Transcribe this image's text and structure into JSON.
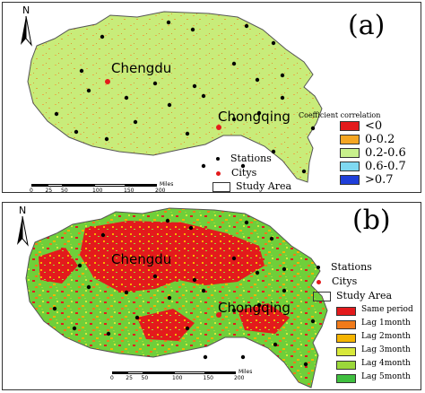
{
  "panel_a": {
    "label": "(a)",
    "north_label": "N",
    "cities": [
      {
        "name": "Chengdu"
      },
      {
        "name": "Chongqing"
      }
    ],
    "legend_title": "Coefficient correlation",
    "legend_entries": [
      {
        "label": "<0",
        "color": "#e31a1c"
      },
      {
        "label": "0-0.2",
        "color": "#f5a623"
      },
      {
        "label": "0.2-0.6",
        "color": "#c8f08c"
      },
      {
        "label": "0.6-0.7",
        "color": "#7fd9f2"
      },
      {
        "label": ">0.7",
        "color": "#1f3fd9"
      }
    ],
    "point_legend": [
      {
        "label": "Stations",
        "symbol": "black-dot"
      },
      {
        "label": "Citys",
        "symbol": "red-dot"
      },
      {
        "label": "Study Area",
        "symbol": "outline-box"
      }
    ],
    "scale": {
      "ticks": [
        "0",
        "25",
        "50",
        "100",
        "150",
        "200"
      ],
      "unit": "Miles"
    }
  },
  "panel_b": {
    "label": "(b)",
    "north_label": "N",
    "cities": [
      {
        "name": "Chengdu"
      },
      {
        "name": "Chongqing"
      }
    ],
    "point_legend": [
      {
        "label": "Stations",
        "symbol": "black-dot"
      },
      {
        "label": "Citys",
        "symbol": "red-dot"
      },
      {
        "label": "Study Area",
        "symbol": "outline-box"
      }
    ],
    "legend_entries": [
      {
        "label": "Same period",
        "color": "#e31a1c"
      },
      {
        "label": "Lag 1month",
        "color": "#f07a1a"
      },
      {
        "label": "Lag 2month",
        "color": "#f5b400"
      },
      {
        "label": "Lag 3month",
        "color": "#d8e83a"
      },
      {
        "label": "Lag 4month",
        "color": "#9bd83a"
      },
      {
        "label": "Lag 5month",
        "color": "#3fbf3f"
      }
    ],
    "scale": {
      "ticks": [
        "0",
        "25",
        "50",
        "100",
        "150",
        "200"
      ],
      "unit": "Miles"
    }
  }
}
